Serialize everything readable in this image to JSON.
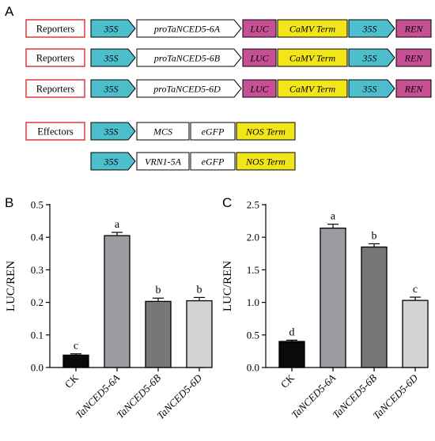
{
  "panels": {
    "a": "A",
    "b": "B",
    "c": "C"
  },
  "colors": {
    "promoter35s": "#4dbfcc",
    "luc": "#c74f93",
    "term": "#f2e51a",
    "ren": "#c74f93",
    "plain": "#ffffff",
    "labelBox": "#d73a3a"
  },
  "constructs": [
    {
      "label": "Reporters",
      "parts": [
        {
          "text": "35S",
          "color": "promoter35s",
          "shape": "arrow",
          "w": 56
        },
        {
          "text": "proTaNCED5-6A",
          "color": "plain",
          "shape": "arrow",
          "w": 132
        },
        {
          "text": "LUC",
          "color": "luc",
          "shape": "rect",
          "w": 42
        },
        {
          "text": "CaMV Term",
          "color": "term",
          "shape": "rect",
          "w": 88
        },
        {
          "text": "35S",
          "color": "promoter35s",
          "shape": "arrow",
          "w": 58
        },
        {
          "text": "REN",
          "color": "ren",
          "shape": "rect",
          "w": 44
        }
      ]
    },
    {
      "label": "Reporters",
      "parts": [
        {
          "text": "35S",
          "color": "promoter35s",
          "shape": "arrow",
          "w": 56
        },
        {
          "text": "proTaNCED5-6B",
          "color": "plain",
          "shape": "arrow",
          "w": 132
        },
        {
          "text": "LUC",
          "color": "luc",
          "shape": "rect",
          "w": 42
        },
        {
          "text": "CaMV Term",
          "color": "term",
          "shape": "rect",
          "w": 88
        },
        {
          "text": "35S",
          "color": "promoter35s",
          "shape": "arrow",
          "w": 58
        },
        {
          "text": "REN",
          "color": "ren",
          "shape": "rect",
          "w": 44
        }
      ]
    },
    {
      "label": "Reporters",
      "parts": [
        {
          "text": "35S",
          "color": "promoter35s",
          "shape": "arrow",
          "w": 56
        },
        {
          "text": "proTaNCED5-6D",
          "color": "plain",
          "shape": "arrow",
          "w": 132
        },
        {
          "text": "LUC",
          "color": "luc",
          "shape": "rect",
          "w": 42
        },
        {
          "text": "CaMV Term",
          "color": "term",
          "shape": "rect",
          "w": 88
        },
        {
          "text": "35S",
          "color": "promoter35s",
          "shape": "arrow",
          "w": 58
        },
        {
          "text": "REN",
          "color": "ren",
          "shape": "rect",
          "w": 44
        }
      ]
    },
    {
      "label": "Effectors",
      "parts": [
        {
          "text": "35S",
          "color": "promoter35s",
          "shape": "arrow",
          "w": 56
        },
        {
          "text": "MCS",
          "color": "plain",
          "shape": "rect",
          "w": 66
        },
        {
          "text": "eGFP",
          "color": "plain",
          "shape": "rect",
          "w": 56
        },
        {
          "text": "NOS Term",
          "color": "term",
          "shape": "rect",
          "w": 74
        }
      ]
    },
    {
      "label": "",
      "parts": [
        {
          "text": "35S",
          "color": "promoter35s",
          "shape": "arrow",
          "w": 56
        },
        {
          "text": "VRN1-5A",
          "color": "plain",
          "shape": "rect",
          "w": 66
        },
        {
          "text": "eGFP",
          "color": "plain",
          "shape": "rect",
          "w": 56
        },
        {
          "text": "NOS Term",
          "color": "term",
          "shape": "rect",
          "w": 74
        }
      ]
    }
  ],
  "chart_data": [
    {
      "type": "bar",
      "panel": "B",
      "categories": [
        "CK",
        "TaNCED5-6A",
        "TaNCED5-6B",
        "TaNCED5-6D"
      ],
      "values": [
        0.038,
        0.405,
        0.203,
        0.205
      ],
      "errors": [
        0.004,
        0.01,
        0.01,
        0.01
      ],
      "significance": [
        "c",
        "a",
        "b",
        "b"
      ],
      "bar_colors": [
        "#0a0a0a",
        "#9b9ba1",
        "#77777a",
        "#d3d3d3"
      ],
      "ylabel": "LUC/REN",
      "ylim": [
        0,
        0.5
      ],
      "yticks": [
        0.0,
        0.1,
        0.2,
        0.3,
        0.4,
        0.5
      ],
      "ytick_labels": [
        "0.0",
        "0.1",
        "0.2",
        "0.3",
        "0.4",
        "0.5"
      ],
      "grid": false
    },
    {
      "type": "bar",
      "panel": "C",
      "categories": [
        "CK",
        "TaNCED5-6A",
        "TaNCED5-6B",
        "TaNCED5-6D"
      ],
      "values": [
        0.4,
        2.14,
        1.85,
        1.03
      ],
      "errors": [
        0.02,
        0.06,
        0.05,
        0.05
      ],
      "significance": [
        "d",
        "a",
        "b",
        "c"
      ],
      "bar_colors": [
        "#0a0a0a",
        "#9b9ba1",
        "#77777a",
        "#d3d3d3"
      ],
      "ylabel": "LUC/REN",
      "ylim": [
        0,
        2.5
      ],
      "yticks": [
        0.0,
        0.5,
        1.0,
        1.5,
        2.0,
        2.5
      ],
      "ytick_labels": [
        "0.0",
        "0.5",
        "1.0",
        "1.5",
        "2.0",
        "2.5"
      ],
      "grid": false
    }
  ]
}
